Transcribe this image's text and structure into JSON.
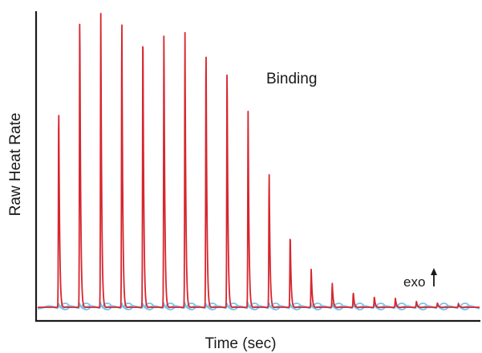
{
  "chart_data": {
    "type": "line",
    "xlabel": "Time (sec)",
    "ylabel": "Raw Heat Rate",
    "annotations": {
      "series_label": "Binding",
      "direction_label": "exo",
      "direction_arrow": "up-arrow"
    },
    "ylim": [
      0,
      1
    ],
    "xlim": [
      0,
      21
    ],
    "baseline": 0.0,
    "series": [
      {
        "color": "#d7262e",
        "peak_times": [
          1,
          2,
          3,
          4,
          5,
          6,
          7,
          8,
          9,
          10,
          11,
          12,
          13,
          14,
          15,
          16,
          17,
          18,
          19,
          20
        ],
        "peak_heights": [
          0.69,
          1.0,
          0.99,
          0.98,
          0.96,
          0.93,
          0.92,
          0.9,
          0.82,
          0.66,
          0.46,
          0.25,
          0.13,
          0.08,
          0.05,
          0.035,
          0.03,
          0.02,
          0.015,
          0.012
        ]
      },
      {
        "color": "#7fc0e6",
        "peak_times": [
          1,
          2,
          3,
          4,
          5,
          6,
          7,
          8,
          9,
          10,
          11,
          12,
          13,
          14,
          15,
          16,
          17,
          18,
          19,
          20
        ],
        "peak_heights": [
          0.015,
          0.015,
          0.015,
          0.015,
          0.015,
          0.015,
          0.015,
          0.015,
          0.015,
          0.015,
          0.015,
          0.015,
          0.015,
          0.015,
          0.015,
          0.015,
          0.015,
          0.015,
          0.015,
          0.015
        ]
      }
    ]
  }
}
